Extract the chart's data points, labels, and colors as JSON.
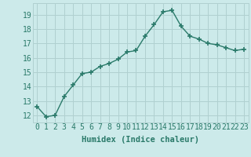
{
  "x": [
    0,
    1,
    2,
    3,
    4,
    5,
    6,
    7,
    8,
    9,
    10,
    11,
    12,
    13,
    14,
    15,
    16,
    17,
    18,
    19,
    20,
    21,
    22,
    23
  ],
  "y": [
    12.6,
    11.9,
    12.0,
    13.3,
    14.1,
    14.9,
    15.0,
    15.4,
    15.6,
    15.9,
    16.4,
    16.5,
    17.5,
    18.3,
    19.2,
    19.3,
    18.2,
    17.5,
    17.3,
    17.0,
    16.9,
    16.7,
    16.5,
    16.6
  ],
  "line_color": "#2a7a6a",
  "marker": "+",
  "marker_size": 4,
  "marker_lw": 1.2,
  "bg_color": "#cceaea",
  "grid_color": "#b0d0d0",
  "xlabel": "Humidex (Indice chaleur)",
  "ylabel_ticks": [
    12,
    13,
    14,
    15,
    16,
    17,
    18,
    19
  ],
  "xlim": [
    -0.5,
    23.5
  ],
  "ylim": [
    11.5,
    19.8
  ],
  "xlabel_fontsize": 7.5,
  "tick_fontsize": 7,
  "tick_color": "#2a7a6a",
  "label_color": "#2a7a6a",
  "line_width": 1.0
}
